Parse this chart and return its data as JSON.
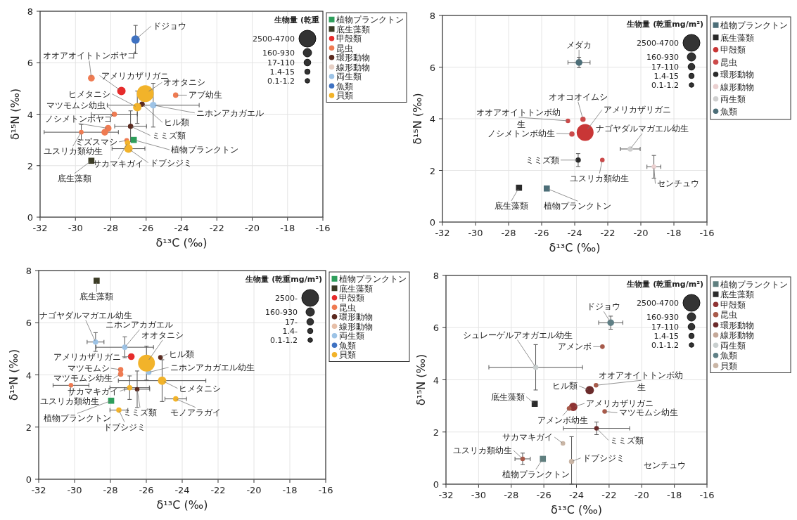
{
  "chart_data": [
    {
      "type": "bubble",
      "xlabel": "δ¹³C (‰)",
      "ylabel": "δ¹⁵N (‰)",
      "xlim": [
        -32,
        -16
      ],
      "xticks": [
        -32,
        -30,
        -28,
        -26,
        -24,
        -22,
        -20,
        -18,
        -16
      ],
      "ylim": [
        0,
        8
      ],
      "yticks": [
        0,
        2,
        4,
        6,
        8
      ],
      "grid": true,
      "legend": "right",
      "legend_title": "生物量 (乾重",
      "size_legend": [
        {
          "value": 1,
          "label": "2500-4700"
        },
        {
          "value": 0.25,
          "label": "160-930"
        },
        {
          "value": 0.16,
          "label": "17-110"
        },
        {
          "value": 0.1,
          "label": "1.4-15"
        },
        {
          "value": 0.075,
          "label": "0.1-1.2"
        }
      ],
      "series": [
        {
          "name": "植物プランクトン",
          "color": "#2e9e5b",
          "marker": "square",
          "x": [
            -26.7
          ],
          "values": [
            3.0
          ],
          "sizes": [
            0.16
          ]
        },
        {
          "name": "底生藻類",
          "color": "#3b3b25",
          "marker": "square",
          "x": [
            -29.1
          ],
          "values": [
            2.19
          ],
          "sizes": [
            0.16
          ]
        },
        {
          "name": "甲殻類",
          "color": "#e62b2b",
          "marker": "circle",
          "x": [
            -27.4
          ],
          "values": [
            4.9
          ],
          "sizes": [
            0.25
          ]
        },
        {
          "name": "昆虫",
          "color": "#ef7b52",
          "marker": "circle",
          "x": [
            -29.1,
            -24.33,
            -27.8,
            -28.15,
            -28.34,
            -29.67,
            -27.1
          ],
          "values": [
            5.4,
            4.74,
            4.0,
            3.45,
            3.3,
            3.3,
            2.98
          ],
          "sizes": [
            0.16,
            0.1,
            0.1,
            0.16,
            0.16,
            0.075,
            0.075
          ],
          "errors": [
            null,
            null,
            null,
            null,
            null,
            0.3,
            null
          ],
          "xerrors": [
            null,
            null,
            1.3,
            null,
            null,
            2.1,
            null
          ]
        },
        {
          "name": "環形動物",
          "color": "#5b2a1f",
          "marker": "circle",
          "x": [
            -26.23,
            -26.88
          ],
          "values": [
            4.39,
            3.53
          ],
          "sizes": [
            0.1,
            0.1
          ],
          "errors": [
            null,
            0.6
          ],
          "xerrors": [
            null,
            0.9
          ]
        },
        {
          "name": "線形動物",
          "color": "#e6cfc4",
          "marker": "circle"
        },
        {
          "name": "両生類",
          "color": "#9dc3e6",
          "marker": "circle",
          "x": [
            -25.6
          ],
          "values": [
            4.35
          ],
          "sizes": [
            0.16
          ],
          "errors": [
            0.85
          ],
          "xerrors": [
            2.6
          ]
        },
        {
          "name": "魚類",
          "color": "#3f72c2",
          "marker": "circle",
          "x": [
            -26.6
          ],
          "values": [
            6.9
          ],
          "sizes": [
            0.25
          ],
          "errors": [
            0.55
          ]
        },
        {
          "name": "貝類",
          "color": "#f2b32a",
          "marker": "circle",
          "x": [
            -26.05,
            -26.5,
            -27.05,
            -27.0
          ],
          "values": [
            4.8,
            4.27,
            2.89,
            2.66
          ],
          "sizes": [
            1,
            0.25,
            0.1,
            0.25
          ],
          "errors": [
            null,
            0.63,
            null,
            null
          ],
          "xerrors": [
            null,
            null,
            null,
            0.93
          ]
        }
      ],
      "annotations": [
        {
          "text": "ドジョウ",
          "x": -26.6,
          "y": 6.9
        },
        {
          "text": "オオアオイトトンボヤゴ",
          "x": -29.1,
          "y": 5.4
        },
        {
          "text": "アメリカザリガニ",
          "x": -27.4,
          "y": 4.9
        },
        {
          "text": "オオタニシ",
          "x": -26.05,
          "y": 4.8
        },
        {
          "text": "アブ幼生",
          "x": -24.33,
          "y": 4.74
        },
        {
          "text": "ヒメタニシ",
          "x": -26.5,
          "y": 4.27
        },
        {
          "text": "マツモムシ幼虫",
          "x": -27.8,
          "y": 4.0
        },
        {
          "text": "ニホンアカガエル",
          "x": -25.6,
          "y": 4.35
        },
        {
          "text": "ヒル類",
          "x": -26.23,
          "y": 4.39
        },
        {
          "text": "ノシメトンボヤゴ",
          "x": -28.15,
          "y": 3.45
        },
        {
          "text": "ミミズ類",
          "x": -26.88,
          "y": 3.53
        },
        {
          "text": "ユスリカ類幼生",
          "x": -29.67,
          "y": 3.3
        },
        {
          "text": "ミズスマシ",
          "x": -27.1,
          "y": 2.98
        },
        {
          "text": "植物プランクトン",
          "x": -26.7,
          "y": 3.0
        },
        {
          "text": "サカマキガイ",
          "x": -27.05,
          "y": 2.89
        },
        {
          "text": "ドブシジミ",
          "x": -27.0,
          "y": 2.66
        },
        {
          "text": "底生藻類",
          "x": -29.1,
          "y": 2.19
        }
      ]
    },
    {
      "type": "bubble",
      "xlabel": "δ¹³C (‰)",
      "ylabel": "δ¹⁵N (‰)",
      "xlim": [
        -32,
        -16
      ],
      "xticks": [
        -32,
        -30,
        -28,
        -26,
        -24,
        -22,
        -20,
        -18,
        -16
      ],
      "ylim": [
        0,
        8
      ],
      "yticks": [
        0,
        2,
        4,
        6,
        8
      ],
      "grid": true,
      "legend": "right",
      "legend_title": "生物量 (乾重mg/m²)",
      "size_legend": [
        {
          "value": 1,
          "label": "2500-4700"
        },
        {
          "value": 0.25,
          "label": "160-930"
        },
        {
          "value": 0.16,
          "label": "17-110"
        },
        {
          "value": 0.1,
          "label": "1.4-15"
        },
        {
          "value": 0.075,
          "label": "0.1-1.2"
        }
      ],
      "series": [
        {
          "name": "植物プランクトン",
          "color": "#4c6e78",
          "marker": "square",
          "x": [
            -25.69
          ],
          "values": [
            1.3
          ],
          "sizes": [
            0.16
          ]
        },
        {
          "name": "底生藻類",
          "color": "#2a2a2a",
          "marker": "square",
          "x": [
            -27.37
          ],
          "values": [
            1.33
          ],
          "sizes": [
            0.16
          ]
        },
        {
          "name": "甲殻類",
          "color": "#c93636",
          "marker": "circle",
          "x": [
            -23.37
          ],
          "values": [
            3.47
          ],
          "sizes": [
            1
          ]
        },
        {
          "name": "昆虫",
          "color": "#cc4a4a",
          "marker": "circle",
          "x": [
            -23.5,
            -24.41,
            -24.17,
            -22.33
          ],
          "values": [
            3.98,
            3.92,
            3.41,
            2.4
          ],
          "sizes": [
            0.1,
            0.075,
            0.1,
            0.075
          ]
        },
        {
          "name": "環形動物",
          "color": "#2a2a2a",
          "marker": "circle",
          "x": [
            -23.79
          ],
          "values": [
            2.4
          ],
          "sizes": [
            0.1
          ],
          "errors": [
            0.25
          ]
        },
        {
          "name": "線形動物",
          "color": "#ead0d0",
          "marker": "circle",
          "x": [
            -19.21
          ],
          "values": [
            2.14
          ],
          "sizes": [
            0.075
          ],
          "errors": [
            0.44
          ],
          "xerrors": [
            0.42
          ]
        },
        {
          "name": "両生類",
          "color": "#cfcfcf",
          "marker": "circle",
          "x": [
            -20.64
          ],
          "values": [
            2.83
          ],
          "sizes": [
            0.1
          ],
          "xerrors": [
            0.6
          ]
        },
        {
          "name": "魚類",
          "color": "#4c6e78",
          "marker": "circle",
          "x": [
            -23.74
          ],
          "values": [
            6.18
          ],
          "sizes": [
            0.16
          ],
          "errors": [
            0.2
          ],
          "xerrors": [
            0.67
          ]
        }
      ],
      "annotations": [
        {
          "text": "メダカ",
          "x": -23.74,
          "y": 6.18
        },
        {
          "text": "オオコオイムシ",
          "x": -23.5,
          "y": 3.98
        },
        {
          "text": "オオアオイトトンボ幼",
          "x": -24.41,
          "y": 3.92
        },
        "生",
        {
          "text": "アメリカザリガニ",
          "x": -23.37,
          "y": 3.47
        },
        {
          "text": "ノシメトンボ幼生",
          "x": -24.17,
          "y": 3.41
        },
        {
          "text": "ナゴヤダルマガエル幼生",
          "x": -20.64,
          "y": 2.83
        },
        {
          "text": "ミミズ類",
          "x": -23.79,
          "y": 2.4
        },
        {
          "text": "ユスリカ類幼生",
          "x": -22.33,
          "y": 2.4
        },
        {
          "text": "センチュウ",
          "x": -19.21,
          "y": 2.14
        },
        {
          "text": "底生藻類",
          "x": -27.37,
          "y": 1.33
        },
        {
          "text": "植物プランクトン",
          "x": -25.69,
          "y": 1.3
        }
      ]
    },
    {
      "type": "bubble",
      "xlabel": "δ¹³C (‰)",
      "ylabel": "δ¹⁵N (‰)",
      "xlim": [
        -32,
        -16
      ],
      "xticks": [
        -32,
        -30,
        -28,
        -26,
        -24,
        -22,
        -20,
        -18,
        -16
      ],
      "ylim": [
        0,
        8
      ],
      "yticks": [
        0,
        2,
        4,
        6,
        8
      ],
      "grid": true,
      "legend": "right",
      "legend_title": "生物量 (乾重mg/m²)",
      "size_legend": [
        {
          "value": 1,
          "label": "2500-"
        },
        {
          "value": 0.25,
          "label": "160-930"
        },
        {
          "value": 0.16,
          "label": "17-"
        },
        {
          "value": 0.1,
          "label": "1.4-"
        },
        {
          "value": 0.075,
          "label": "0.1-1.2"
        }
      ],
      "series": [
        {
          "name": "植物プランクトン",
          "color": "#2e9e5b",
          "marker": "square",
          "x": [
            -27.96
          ],
          "values": [
            3.01
          ],
          "sizes": [
            0.16
          ]
        },
        {
          "name": "底生藻類",
          "color": "#3b3b25",
          "marker": "square",
          "x": [
            -28.77
          ],
          "values": [
            7.61
          ],
          "sizes": [
            0.16
          ]
        },
        {
          "name": "甲殻類",
          "color": "#e62b2b",
          "marker": "circle",
          "x": [
            -26.84
          ],
          "values": [
            4.7
          ],
          "sizes": [
            0.16
          ]
        },
        {
          "name": "昆虫",
          "color": "#ef7b52",
          "marker": "circle",
          "x": [
            -27.43,
            -27.43,
            -30.2
          ],
          "values": [
            4.2,
            4.03,
            3.6
          ],
          "sizes": [
            0.1,
            0.1,
            0.075
          ],
          "xerrors": [
            null,
            null,
            1.0
          ]
        },
        {
          "name": "環形動物",
          "color": "#5b2a1f",
          "marker": "circle",
          "x": [
            -25.21,
            -26.51
          ],
          "values": [
            4.67,
            3.45
          ],
          "sizes": [
            0.075,
            0.075
          ],
          "errors": [
            null,
            0.7
          ],
          "xerrors": [
            null,
            0.7
          ]
        },
        {
          "name": "線形動物",
          "color": "#e6bfa8",
          "marker": "circle"
        },
        {
          "name": "両生類",
          "color": "#9dc3e6",
          "marker": "circle",
          "x": [
            -28.83,
            -27.2,
            -25.86
          ],
          "values": [
            5.26,
            5.06,
            4.1
          ],
          "sizes": [
            0.1,
            0.1,
            0.1
          ],
          "errors": [
            0.36,
            0.4,
            null
          ],
          "xerrors": [
            0.47,
            1.6,
            null
          ]
        },
        {
          "name": "魚類",
          "color": "#3f72c2",
          "marker": "circle"
        },
        {
          "name": "貝類",
          "color": "#f2b32a",
          "marker": "circle",
          "x": [
            -25.99,
            -25.12,
            -26.93,
            -24.36,
            -27.53
          ],
          "values": [
            4.45,
            3.78,
            3.51,
            3.08,
            2.65
          ],
          "sizes": [
            1,
            0.25,
            0.1,
            0.1,
            0.1
          ],
          "errors": [
            0.65,
            0.8,
            0.45,
            null,
            null
          ],
          "xerrors": [
            null,
            2.44,
            1.1,
            0.6,
            0.5
          ]
        }
      ],
      "annotations": [
        {
          "text": "底生藻類",
          "x": -28.77,
          "y": 7.61
        },
        {
          "text": "ナゴヤダルマガエル幼生",
          "x": -28.83,
          "y": 5.26
        },
        {
          "text": "ニホンアカガエル",
          "x": -27.2,
          "y": 5.06
        },
        {
          "text": "オオタニシ",
          "x": -25.99,
          "y": 4.45
        },
        {
          "text": "アメリカザリガニ",
          "x": -26.84,
          "y": 4.7
        },
        {
          "text": "ヒル類",
          "x": -25.21,
          "y": 4.67
        },
        {
          "text": "ニホンアカガエル幼生",
          "x": -25.86,
          "y": 4.1
        },
        {
          "text": "マツモムシ",
          "x": -27.43,
          "y": 4.2
        },
        {
          "text": "マツモムシ幼生",
          "x": -27.43,
          "y": 4.03
        },
        {
          "text": "ユスリカ類幼生",
          "x": -30.2,
          "y": 3.6
        },
        {
          "text": "ヒメタニシ",
          "x": -25.12,
          "y": 3.78
        },
        {
          "text": "サカマキガイ",
          "x": -26.93,
          "y": 3.51
        },
        {
          "text": "ミミズ類",
          "x": -26.51,
          "y": 3.45
        },
        {
          "text": "モノアラガイ",
          "x": -24.36,
          "y": 3.08
        },
        {
          "text": "植物プランクトン",
          "x": -27.96,
          "y": 3.01
        },
        {
          "text": "ドブシジミ",
          "x": -27.53,
          "y": 2.65
        }
      ]
    },
    {
      "type": "bubble",
      "xlabel": "δ¹³C (‰)",
      "ylabel": "δ¹⁵N (‰)",
      "xlim": [
        -32,
        -16
      ],
      "xticks": [
        -32,
        -30,
        -28,
        -26,
        -24,
        -22,
        -20,
        -18,
        -16
      ],
      "ylim": [
        0,
        8
      ],
      "yticks": [
        0,
        2,
        4,
        6,
        8
      ],
      "grid": true,
      "legend": "right",
      "legend_title": "生物量 (乾重mg/m²)",
      "size_legend": [
        {
          "value": 1,
          "label": "2500-4700"
        },
        {
          "value": 0.25,
          "label": "160-930"
        },
        {
          "value": 0.16,
          "label": "17-110"
        },
        {
          "value": 0.1,
          "label": "1.4-15"
        },
        {
          "value": 0.075,
          "label": "0.1-1.2"
        }
      ],
      "series": [
        {
          "name": "植物プランクトン",
          "color": "#5f7f7f",
          "marker": "square",
          "x": [
            -26.06
          ],
          "values": [
            0.97
          ],
          "sizes": [
            0.16
          ]
        },
        {
          "name": "底生藻類",
          "color": "#2a2a2a",
          "marker": "square",
          "x": [
            -26.56
          ],
          "values": [
            3.08
          ],
          "sizes": [
            0.16
          ]
        },
        {
          "name": "甲殻類",
          "color": "#8f3333",
          "marker": "circle",
          "x": [
            -24.2
          ],
          "values": [
            2.96
          ],
          "sizes": [
            0.25
          ]
        },
        {
          "name": "昆虫",
          "color": "#a85a4a",
          "marker": "circle",
          "x": [
            -22.41,
            -22.8,
            -24.45,
            -22.27,
            -27.3
          ],
          "values": [
            5.27,
            3.79,
            2.9,
            2.79,
            0.97
          ],
          "sizes": [
            0.075,
            0.075,
            0.075,
            0.075,
            0.075
          ],
          "errors": [
            null,
            null,
            null,
            null,
            0.22
          ],
          "xerrors": [
            null,
            null,
            null,
            null,
            0.47
          ]
        },
        {
          "name": "環形動物",
          "color": "#6a2a2a",
          "marker": "circle",
          "x": [
            -23.19,
            -22.77
          ],
          "values": [
            3.6,
            2.14
          ],
          "sizes": [
            0.25,
            0.075
          ],
          "errors": [
            null,
            0.24
          ],
          "xerrors": [
            null,
            2.03
          ]
        },
        {
          "name": "線形動物",
          "color": "#c4a898",
          "marker": "circle"
        },
        {
          "name": "両生類",
          "color": "#c9cfcf",
          "marker": "circle",
          "x": [
            -26.5
          ],
          "values": [
            4.48
          ],
          "sizes": [
            0.1
          ],
          "errors": [
            0.87
          ],
          "xerrors": [
            2.87
          ]
        },
        {
          "name": "魚類",
          "color": "#5f7f85",
          "marker": "circle",
          "x": [
            -21.9
          ],
          "values": [
            6.19
          ],
          "sizes": [
            0.16
          ],
          "errors": [
            0.25
          ],
          "xerrors": [
            0.74
          ]
        },
        {
          "name": "貝類",
          "color": "#c9b5a5",
          "marker": "circle",
          "x": [
            -24.83,
            -24.3
          ],
          "values": [
            1.56,
            0.87
          ],
          "sizes": [
            0.075,
            0.1
          ],
          "errors": [
            null,
            [
              0,
              1.82
            ]
          ]
        }
      ],
      "annotations": [
        {
          "text": "ドジョウ",
          "x": -21.9,
          "y": 6.19
        },
        {
          "text": "アメンボ",
          "x": -22.41,
          "y": 5.27
        },
        {
          "text": "シュレーゲルアオガエル幼生",
          "x": -26.5,
          "y": 4.48
        },
        {
          "text": "オオアオイトトンボ幼",
          "x": -22.8,
          "y": 3.79
        },
        "生",
        {
          "text": "ヒル類",
          "x": -23.19,
          "y": 3.6
        },
        {
          "text": "底生藻類",
          "x": -26.56,
          "y": 3.08
        },
        {
          "text": "アメリカザリガニ",
          "x": -24.2,
          "y": 2.96
        },
        {
          "text": "アメンボ幼生",
          "x": -24.45,
          "y": 2.9
        },
        {
          "text": "マツモムシ幼生",
          "x": -22.27,
          "y": 2.79
        },
        {
          "text": "ミミズ類",
          "x": -22.77,
          "y": 2.14
        },
        {
          "text": "サカマキガイ",
          "x": -24.83,
          "y": 1.56
        },
        {
          "text": "ユスリカ類幼生",
          "x": -27.3,
          "y": 0.97
        },
        {
          "text": "植物プランクトン",
          "x": -26.06,
          "y": 0.97
        },
        {
          "text": "ドブシジミ",
          "x": -24.3,
          "y": 0.87
        },
        "センチュウ"
      ]
    }
  ]
}
